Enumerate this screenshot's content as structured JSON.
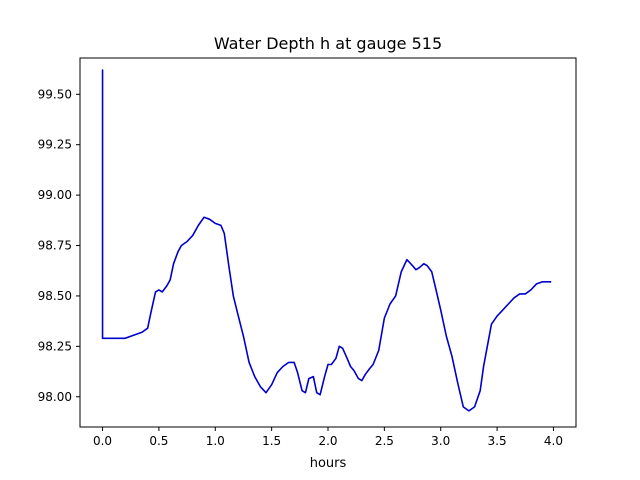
{
  "chart_data": {
    "type": "line",
    "title": "Water Depth h at gauge 515",
    "xlabel": "hours",
    "ylabel": "",
    "xlim": [
      -0.2,
      4.2
    ],
    "ylim": [
      97.85,
      99.68
    ],
    "xticks": [
      0.0,
      0.5,
      1.0,
      1.5,
      2.0,
      2.5,
      3.0,
      3.5,
      4.0
    ],
    "xtick_labels": [
      "0.0",
      "0.5",
      "1.0",
      "1.5",
      "2.0",
      "2.5",
      "3.0",
      "3.5",
      "4.0"
    ],
    "yticks": [
      98.0,
      98.25,
      98.5,
      98.75,
      99.0,
      99.25,
      99.5
    ],
    "ytick_labels": [
      "98.00",
      "98.25",
      "98.50",
      "98.75",
      "99.00",
      "99.25",
      "99.50"
    ],
    "grid": false,
    "color": "#0000cc",
    "series": [
      {
        "x": [
          0.0,
          0.0,
          0.0,
          0.05,
          0.1,
          0.15,
          0.2,
          0.25,
          0.3,
          0.35,
          0.4,
          0.43,
          0.47,
          0.5,
          0.53,
          0.57,
          0.6,
          0.63,
          0.67,
          0.7,
          0.75,
          0.8,
          0.85,
          0.9,
          0.95,
          1.0,
          1.05,
          1.08,
          1.12,
          1.16,
          1.2,
          1.25,
          1.3,
          1.35,
          1.4,
          1.45,
          1.5,
          1.55,
          1.6,
          1.65,
          1.7,
          1.73,
          1.77,
          1.8,
          1.83,
          1.87,
          1.9,
          1.93,
          1.97,
          2.0,
          2.03,
          2.07,
          2.1,
          2.13,
          2.17,
          2.2,
          2.23,
          2.27,
          2.3,
          2.33,
          2.37,
          2.4,
          2.45,
          2.5,
          2.55,
          2.6,
          2.65,
          2.7,
          2.75,
          2.78,
          2.81,
          2.85,
          2.88,
          2.92,
          2.95,
          3.0,
          3.05,
          3.1,
          3.15,
          3.2,
          3.25,
          3.3,
          3.35,
          3.38,
          3.42,
          3.45,
          3.5,
          3.55,
          3.6,
          3.65,
          3.7,
          3.75,
          3.8,
          3.85,
          3.9,
          3.95,
          3.98
        ],
        "y": [
          98.29,
          99.62,
          98.29,
          98.29,
          98.29,
          98.29,
          98.29,
          98.3,
          98.31,
          98.32,
          98.34,
          98.42,
          98.52,
          98.53,
          98.52,
          98.55,
          98.58,
          98.66,
          98.72,
          98.75,
          98.77,
          98.8,
          98.85,
          98.89,
          98.88,
          98.86,
          98.85,
          98.81,
          98.65,
          98.5,
          98.41,
          98.3,
          98.17,
          98.1,
          98.05,
          98.02,
          98.06,
          98.12,
          98.15,
          98.17,
          98.17,
          98.12,
          98.03,
          98.02,
          98.09,
          98.1,
          98.02,
          98.01,
          98.1,
          98.16,
          98.16,
          98.19,
          98.25,
          98.24,
          98.19,
          98.15,
          98.13,
          98.09,
          98.08,
          98.11,
          98.14,
          98.16,
          98.23,
          98.39,
          98.46,
          98.5,
          98.62,
          98.68,
          98.65,
          98.63,
          98.64,
          98.66,
          98.65,
          98.62,
          98.55,
          98.43,
          98.3,
          98.2,
          98.07,
          97.95,
          97.93,
          97.95,
          98.03,
          98.15,
          98.27,
          98.36,
          98.4,
          98.43,
          98.46,
          98.49,
          98.51,
          98.51,
          98.53,
          98.56,
          98.57,
          98.57,
          98.57
        ]
      }
    ]
  }
}
